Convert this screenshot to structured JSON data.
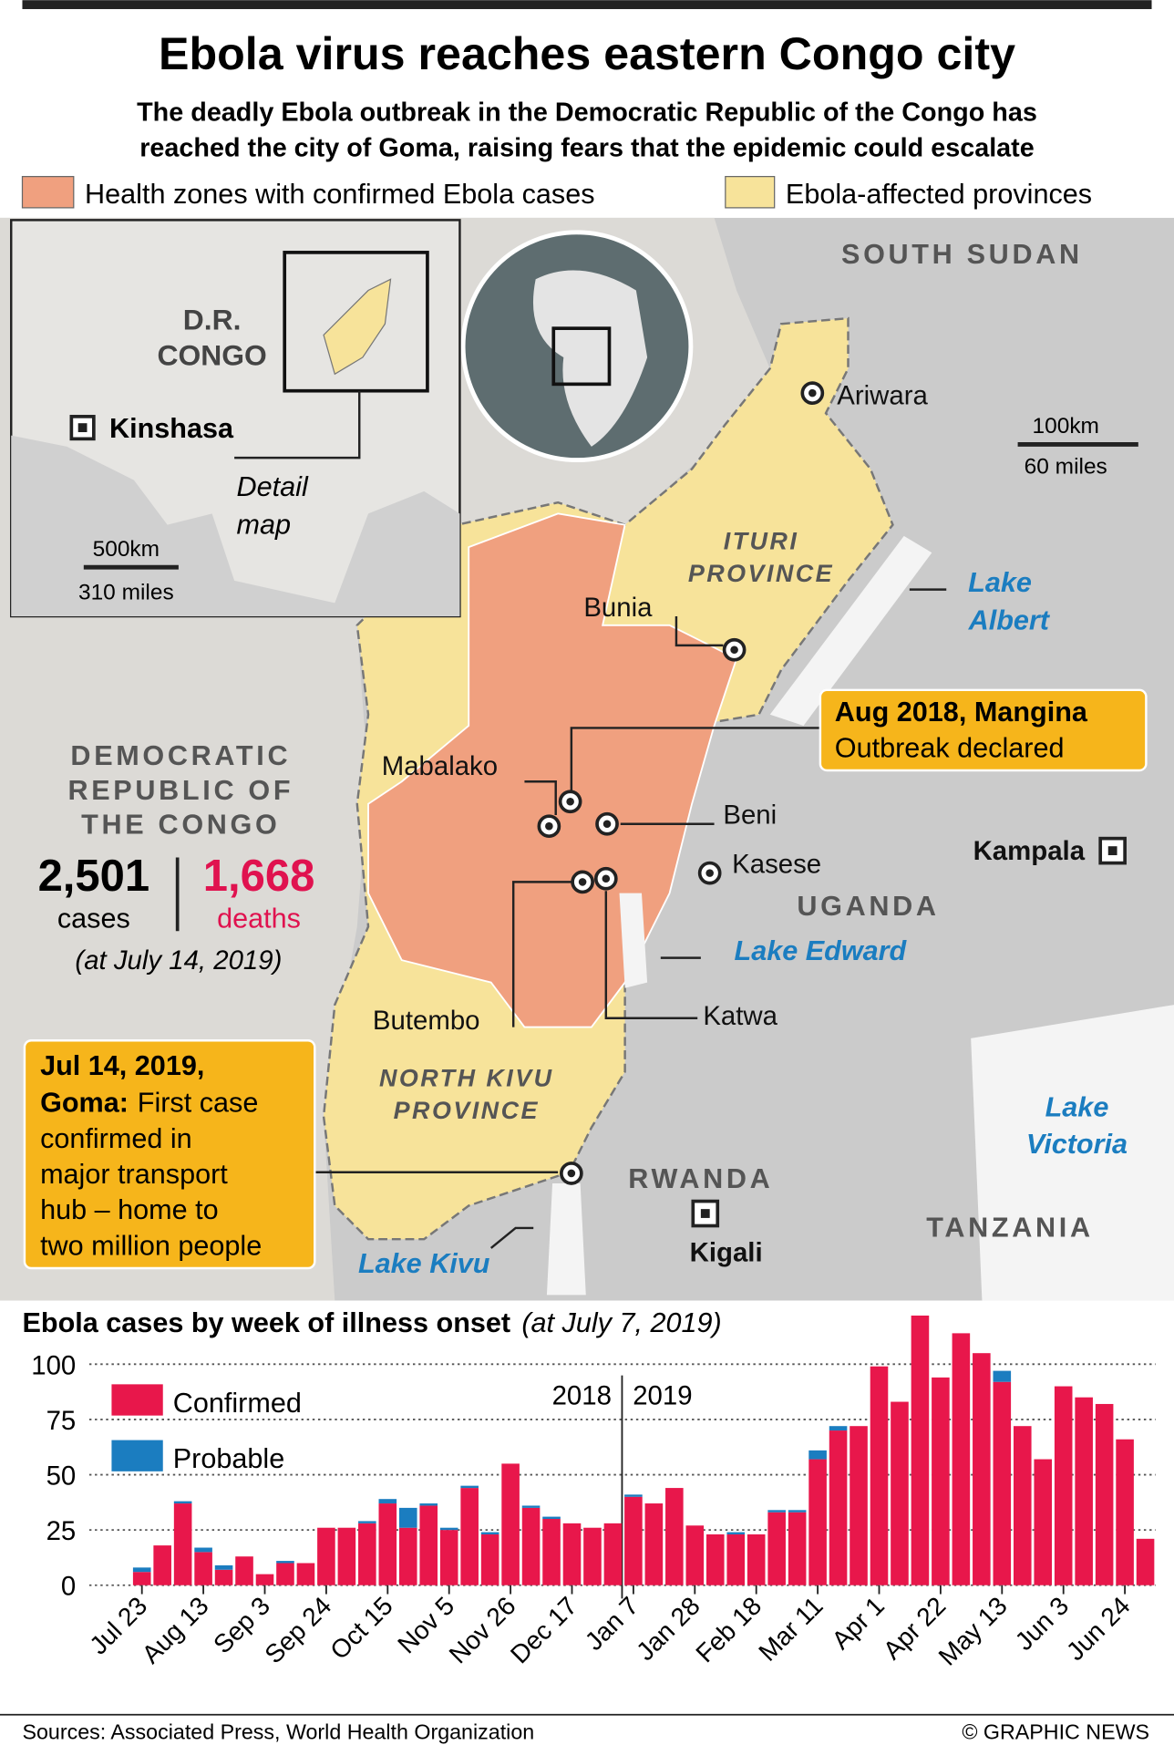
{
  "header": {
    "title": "Ebola virus reaches eastern Congo city",
    "subtitle": [
      "The deadly Ebola outbreak in the Democratic Republic of the Congo has",
      "reached the city of Goma, raising fears that the epidemic could escalate"
    ]
  },
  "legend": {
    "zones": "Health zones with confirmed Ebola cases",
    "provinces": "Ebola-affected provinces"
  },
  "map": {
    "countries": {
      "south_sudan": "SOUTH SUDAN",
      "uganda": "UGANDA",
      "rwanda": "RWANDA",
      "tanzania": "TANZANIA",
      "drc": [
        "DEMOCRATIC",
        "REPUBLIC OF",
        "THE CONGO"
      ]
    },
    "provinces": {
      "ituri": [
        "ITURI",
        "PROVINCE"
      ],
      "north_kivu": [
        "NORTH KIVU",
        "PROVINCE"
      ]
    },
    "lakes": {
      "albert": [
        "Lake",
        "Albert"
      ],
      "edward": "Lake Edward",
      "victoria": [
        "Lake",
        "Victoria"
      ],
      "kivu": "Lake Kivu"
    },
    "cities": {
      "ariwara": "Ariwara",
      "bunia": "Bunia",
      "mabalako": "Mabalako",
      "beni": "Beni",
      "kasese": "Kasese",
      "butembo": "Butembo",
      "katwa": "Katwa",
      "kampala": "Kampala",
      "kigali": "Kigali"
    },
    "scale": {
      "km": "100km",
      "miles": "60 miles"
    }
  },
  "inset": {
    "country": [
      "D.R.",
      "CONGO"
    ],
    "capital": "Kinshasa",
    "detail": [
      "Detail",
      "map"
    ],
    "km": "500km",
    "miles": "310 miles"
  },
  "stats": {
    "cases": "2,501",
    "cases_label": "cases",
    "deaths": "1,668",
    "deaths_label": "deaths",
    "date": "(at July 14, 2019)"
  },
  "callouts": {
    "mangina": {
      "title": "Aug 2018, Mangina",
      "text": "Outbreak declared"
    },
    "goma": {
      "heading": [
        "Jul 14, 2019,",
        "Goma:"
      ],
      "body": [
        "First case",
        "confirmed in",
        "major transport",
        "hub – home to",
        "two million people"
      ]
    }
  },
  "chart_data": {
    "type": "bar",
    "stacked": true,
    "title": "Ebola cases by week of illness onset",
    "subtitle": "(at July 7, 2019)",
    "categories": [
      "Jul 23",
      null,
      null,
      "Aug 13",
      null,
      null,
      "Sep 3",
      null,
      null,
      "Sep 24",
      null,
      null,
      "Oct 15",
      null,
      null,
      "Nov 5",
      null,
      null,
      "Nov 26",
      null,
      null,
      "Dec 17",
      null,
      null,
      "Jan 7",
      null,
      null,
      "Jan 28",
      null,
      null,
      "Feb 18",
      null,
      null,
      "Mar 11",
      null,
      null,
      "Apr 1",
      null,
      null,
      "Apr 22",
      null,
      null,
      "May 13",
      null,
      null,
      "Jun 3",
      null,
      null,
      "Jun 24",
      null
    ],
    "series": [
      {
        "name": "Confirmed",
        "color": "#e8174b",
        "values": [
          6,
          18,
          37,
          15,
          7,
          13,
          5,
          10,
          10,
          26,
          26,
          28,
          37,
          26,
          36,
          25,
          44,
          23,
          55,
          35,
          30,
          28,
          26,
          28,
          40,
          37,
          44,
          27,
          23,
          23,
          23,
          33,
          33,
          57,
          70,
          72,
          99,
          83,
          122,
          94,
          114,
          105,
          92,
          72,
          57,
          90,
          85,
          82,
          66,
          21
        ]
      },
      {
        "name": "Probable",
        "color": "#1b7dc0",
        "values": [
          2,
          0,
          1,
          2,
          2,
          0,
          0,
          1,
          0,
          0,
          0,
          1,
          2,
          9,
          1,
          1,
          1,
          1,
          0,
          1,
          1,
          0,
          0,
          0,
          1,
          0,
          0,
          0,
          0,
          1,
          0,
          1,
          1,
          4,
          2,
          0,
          0,
          0,
          0,
          0,
          0,
          0,
          5,
          0,
          0,
          0,
          0,
          0,
          0,
          0
        ]
      }
    ],
    "ylim": [
      0,
      125
    ],
    "yticks": [
      0,
      25,
      50,
      75,
      100
    ],
    "grid": true,
    "annotations": [
      "2018",
      "2019"
    ]
  },
  "sources": "Sources: Associated Press, World Health Organization",
  "credit": "© GRAPHIC NEWS"
}
